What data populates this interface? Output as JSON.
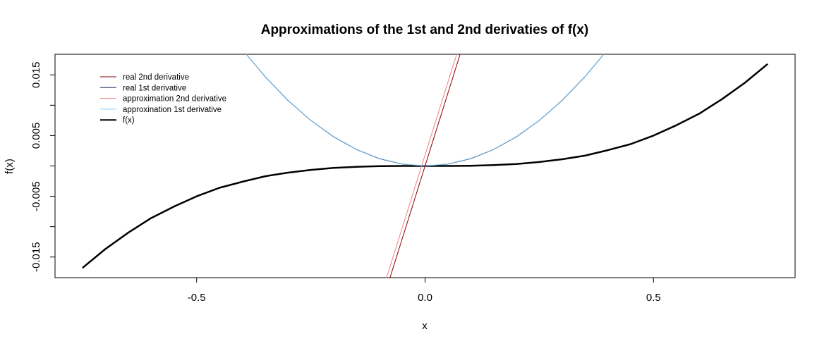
{
  "chart_data": {
    "type": "line",
    "title": "Approximations of the 1st and 2nd derivaties of f(x)",
    "xlabel": "x",
    "ylabel": "f(x)",
    "xlim": [
      -0.81,
      0.81
    ],
    "ylim": [
      -0.0184,
      0.0184
    ],
    "x_ticks": [
      -0.5,
      0.0,
      0.5
    ],
    "x_tick_labels": [
      "-0.5",
      "0.0",
      "0.5"
    ],
    "y_ticks": [
      -0.015,
      -0.01,
      -0.005,
      0.0,
      0.005,
      0.01,
      0.015
    ],
    "y_tick_labels": [
      "-0.015",
      "",
      "-0.005",
      "",
      "0.005",
      "",
      "0.015"
    ],
    "grid": false,
    "legend_position": "top-left",
    "legend": [
      {
        "label": "real 2nd derivative",
        "color": "#8b0000"
      },
      {
        "label": "real 1st derivative",
        "color": "#1f2f5f"
      },
      {
        "label": "approximation 2nd derivative",
        "color": "#f08080"
      },
      {
        "label": "approxination 1st derivative",
        "color": "#87cefa"
      },
      {
        "label": "f(x)",
        "color": "#000000"
      }
    ],
    "series": [
      {
        "name": "f(x)",
        "color": "#000000",
        "x": [
          -0.75,
          -0.7,
          -0.65,
          -0.6,
          -0.55,
          -0.5,
          -0.45,
          -0.4,
          -0.35,
          -0.3,
          -0.25,
          -0.2,
          -0.15,
          -0.1,
          -0.05,
          0.0,
          0.05,
          0.1,
          0.15,
          0.2,
          0.25,
          0.3,
          0.35,
          0.4,
          0.45,
          0.5,
          0.55,
          0.6,
          0.65,
          0.7,
          0.75
        ],
        "y": [
          -0.0168,
          -0.0137,
          -0.011,
          -0.0086,
          -0.0067,
          -0.005,
          -0.0036,
          -0.0026,
          -0.0017,
          -0.0011,
          -0.00065,
          -0.00032,
          -0.00014,
          -4e-05,
          -5e-06,
          0.0,
          5e-06,
          4e-05,
          0.00014,
          0.00032,
          0.00065,
          0.0011,
          0.0017,
          0.0026,
          0.0036,
          0.005,
          0.0067,
          0.0086,
          0.011,
          0.0137,
          0.0168
        ]
      },
      {
        "name": "real 1st derivative",
        "color": "#1f2f5f",
        "x": [
          -0.4,
          -0.35,
          -0.3,
          -0.25,
          -0.2,
          -0.15,
          -0.1,
          -0.05,
          0.0,
          0.05,
          0.1,
          0.15,
          0.2,
          0.25,
          0.3,
          0.35,
          0.4
        ],
        "y": [
          0.0192,
          0.0147,
          0.0108,
          0.0075,
          0.0048,
          0.0027,
          0.0012,
          0.0003,
          0.0,
          0.0003,
          0.0012,
          0.0027,
          0.0048,
          0.0075,
          0.0108,
          0.0147,
          0.0192
        ]
      },
      {
        "name": "approxination 1st derivative",
        "color": "#87cefa",
        "x": [
          -0.4,
          -0.35,
          -0.3,
          -0.25,
          -0.2,
          -0.15,
          -0.1,
          -0.05,
          0.0,
          0.05,
          0.1,
          0.15,
          0.2,
          0.25,
          0.3,
          0.35,
          0.4
        ],
        "y": [
          0.01925,
          0.01475,
          0.01085,
          0.00755,
          0.00485,
          0.00275,
          0.00125,
          0.00035,
          0.0,
          0.00035,
          0.00125,
          0.00275,
          0.00485,
          0.00755,
          0.01085,
          0.01475,
          0.01925
        ]
      },
      {
        "name": "real 2nd derivative",
        "color": "#8b0000",
        "x": [
          -0.1,
          0.1
        ],
        "y": [
          -0.024,
          0.024
        ]
      },
      {
        "name": "approximation 2nd derivative",
        "color": "#f08080",
        "x": [
          -0.1,
          0.1
        ],
        "y": [
          -0.0222,
          0.0258
        ]
      }
    ]
  }
}
